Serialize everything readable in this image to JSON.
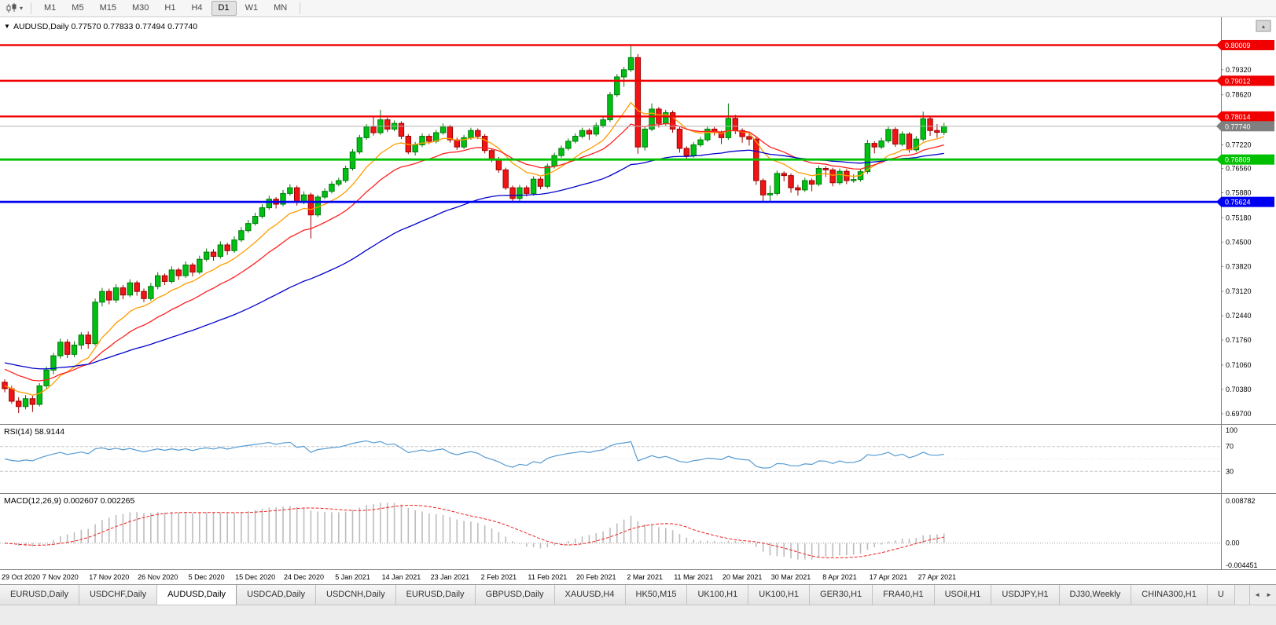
{
  "icons": {
    "dropdown_caret": "▾",
    "collapse_marker": "▼",
    "tab_scroll_left": "◄",
    "tab_scroll_right": "►"
  },
  "toolbar": {
    "timeframes": [
      "M1",
      "M5",
      "M15",
      "M30",
      "H1",
      "H4",
      "D1",
      "W1",
      "MN"
    ],
    "active_timeframe": "D1"
  },
  "chart": {
    "header_line": "AUDUSD,Daily 0.77570 0.77833 0.77494 0.77740",
    "symbol": "AUDUSD,Daily",
    "ohlc": {
      "open": "0.77570",
      "high": "0.77833",
      "low": "0.77494",
      "close": "0.77740"
    }
  },
  "indicators": {
    "rsi": {
      "name": "RSI(14)",
      "value": "58.9144",
      "label": "RSI(14) 58.9144",
      "axis_labels": [
        "100",
        "70",
        "30"
      ]
    },
    "macd": {
      "name": "MACD(12,26,9)",
      "values": [
        "0.002607",
        "0.002265"
      ],
      "label": "MACD(12,26,9) 0.002607 0.002265",
      "axis_labels": [
        "0.008782",
        "0.00",
        "-0.004451"
      ]
    }
  },
  "tabs": {
    "items": [
      "EURUSD,Daily",
      "USDCHF,Daily",
      "AUDUSD,Daily",
      "USDCAD,Daily",
      "USDCNH,Daily",
      "EURUSD,Daily",
      "GBPUSD,Daily",
      "XAUUSD,H4",
      "HK50,M15",
      "UK100,H1",
      "UK100,H1",
      "GER30,H1",
      "FRA40,H1",
      "USOil,H1",
      "USDJPY,H1",
      "DJ30,Weekly",
      "CHINA300,H1",
      "U"
    ],
    "active_index": 2
  },
  "chart_data": {
    "type": "candlestick",
    "symbol": "AUDUSD",
    "timeframe": "Daily",
    "scale_divisor": 100000,
    "price_scale": {
      "min": 0.695,
      "max": 0.807
    },
    "y_ticks": [
      "0.79320",
      "0.78620",
      "0.77920",
      "0.77220",
      "0.76560",
      "0.75880",
      "0.75180",
      "0.74500",
      "0.73820",
      "0.73120",
      "0.72440",
      "0.71760",
      "0.71060",
      "0.70380",
      "0.69700"
    ],
    "x_labels": [
      {
        "i": 1,
        "t": "29 Oct 2020"
      },
      {
        "i": 8,
        "t": "7 Nov 2020"
      },
      {
        "i": 15,
        "t": "17 Nov 2020"
      },
      {
        "i": 22,
        "t": "26 Nov 2020"
      },
      {
        "i": 29,
        "t": "5 Dec 2020"
      },
      {
        "i": 36,
        "t": "15 Dec 2020"
      },
      {
        "i": 43,
        "t": "24 Dec 2020"
      },
      {
        "i": 50,
        "t": "5 Jan 2021"
      },
      {
        "i": 57,
        "t": "14 Jan 2021"
      },
      {
        "i": 64,
        "t": "23 Jan 2021"
      },
      {
        "i": 71,
        "t": "2 Feb 2021"
      },
      {
        "i": 78,
        "t": "11 Feb 2021"
      },
      {
        "i": 85,
        "t": "20 Feb 2021"
      },
      {
        "i": 92,
        "t": "2 Mar 2021"
      },
      {
        "i": 99,
        "t": "11 Mar 2021"
      },
      {
        "i": 106,
        "t": "20 Mar 2021"
      },
      {
        "i": 113,
        "t": "30 Mar 2021"
      },
      {
        "i": 120,
        "t": "8 Apr 2021"
      },
      {
        "i": 127,
        "t": "17 Apr 2021"
      },
      {
        "i": 134,
        "t": "27 Apr 2021"
      }
    ],
    "hlines": [
      {
        "price": 0.80009,
        "label": "0.80009",
        "color": "#f00000"
      },
      {
        "price": 0.79012,
        "label": "0.79012",
        "color": "#f00000"
      },
      {
        "price": 0.78014,
        "label": "0.78014",
        "color": "#f00000"
      },
      {
        "price": 0.76809,
        "label": "0.76809",
        "color": "#00c000"
      },
      {
        "price": 0.75624,
        "label": "0.75624",
        "color": "#0000f0"
      }
    ],
    "current_price": {
      "value": 0.7774,
      "label": "0.77740",
      "color": "#808080"
    },
    "candle_colors": {
      "bull_fill": "#00c014",
      "bull_stroke": "#007a0a",
      "bear_fill": "#f01414",
      "bear_stroke": "#9c0000"
    },
    "overlays": [
      {
        "name": "ma-fast-orange",
        "period": 10,
        "seed": 70500,
        "color": "#ff9c00"
      },
      {
        "name": "ma-mid-red",
        "period": 20,
        "seed": 71000,
        "color": "#ff2020"
      },
      {
        "name": "ma-slow-blue",
        "period": 55,
        "seed": 71150,
        "color": "#0000cc"
      }
    ],
    "rsi": {
      "period": 14,
      "color": "#569bd2",
      "levels": [
        70,
        50,
        30
      ],
      "range": [
        0,
        100
      ]
    },
    "macd": {
      "fast": 12,
      "slow": 26,
      "signal": 9,
      "hist_color": "#bdbdbd",
      "signal_color": "#f02020"
    },
    "candles": [
      [
        70580,
        70660,
        70300,
        70400
      ],
      [
        70400,
        70480,
        69980,
        70050
      ],
      [
        70050,
        70160,
        69720,
        69900
      ],
      [
        69900,
        70220,
        69820,
        70120
      ],
      [
        70120,
        70200,
        69750,
        69960
      ],
      [
        69960,
        70560,
        69900,
        70480
      ],
      [
        70480,
        71020,
        70400,
        70920
      ],
      [
        70920,
        71400,
        70800,
        71320
      ],
      [
        71320,
        71800,
        71240,
        71700
      ],
      [
        71700,
        71780,
        71260,
        71360
      ],
      [
        71360,
        71720,
        71280,
        71620
      ],
      [
        71620,
        71980,
        71500,
        71900
      ],
      [
        71900,
        72000,
        71520,
        71660
      ],
      [
        71660,
        72920,
        71600,
        72820
      ],
      [
        72820,
        73220,
        72700,
        73120
      ],
      [
        73120,
        73200,
        72760,
        72880
      ],
      [
        72880,
        73320,
        72800,
        73220
      ],
      [
        73220,
        73300,
        72900,
        73020
      ],
      [
        73020,
        73460,
        72960,
        73360
      ],
      [
        73360,
        73420,
        73000,
        73120
      ],
      [
        73120,
        73200,
        72820,
        72920
      ],
      [
        72920,
        73360,
        72860,
        73260
      ],
      [
        73260,
        73660,
        73180,
        73560
      ],
      [
        73560,
        73620,
        73300,
        73400
      ],
      [
        73400,
        73820,
        73340,
        73720
      ],
      [
        73720,
        73780,
        73440,
        73560
      ],
      [
        73560,
        73960,
        73500,
        73860
      ],
      [
        73860,
        73920,
        73540,
        73660
      ],
      [
        73660,
        74120,
        73600,
        74020
      ],
      [
        74020,
        74320,
        73960,
        74220
      ],
      [
        74220,
        74300,
        73980,
        74100
      ],
      [
        74100,
        74520,
        74040,
        74420
      ],
      [
        74420,
        74480,
        74140,
        74260
      ],
      [
        74260,
        74660,
        74200,
        74560
      ],
      [
        74560,
        74920,
        74500,
        74820
      ],
      [
        74820,
        75120,
        74760,
        75020
      ],
      [
        75020,
        75320,
        74960,
        75220
      ],
      [
        75220,
        75560,
        75160,
        75460
      ],
      [
        75460,
        75800,
        75400,
        75700
      ],
      [
        75700,
        75760,
        75440,
        75560
      ],
      [
        75560,
        75960,
        75500,
        75860
      ],
      [
        75860,
        76120,
        75800,
        76020
      ],
      [
        76020,
        76080,
        75520,
        75620
      ],
      [
        75620,
        75920,
        75560,
        75820
      ],
      [
        75820,
        75880,
        74600,
        75260
      ],
      [
        75260,
        75820,
        75200,
        75760
      ],
      [
        75760,
        76000,
        75700,
        75920
      ],
      [
        75920,
        76200,
        75860,
        76120
      ],
      [
        76120,
        76300,
        76060,
        76220
      ],
      [
        76220,
        76640,
        76160,
        76560
      ],
      [
        76560,
        77100,
        76500,
        77020
      ],
      [
        77020,
        77500,
        76960,
        77420
      ],
      [
        77420,
        77800,
        77360,
        77720
      ],
      [
        77720,
        78000,
        77480,
        77560
      ],
      [
        77560,
        78200,
        77500,
        77920
      ],
      [
        77920,
        77980,
        77580,
        77660
      ],
      [
        77660,
        77900,
        77600,
        77820
      ],
      [
        77820,
        77880,
        77380,
        77460
      ],
      [
        77460,
        77520,
        76960,
        77020
      ],
      [
        77020,
        77300,
        76920,
        77220
      ],
      [
        77220,
        77540,
        77160,
        77460
      ],
      [
        77460,
        77520,
        77240,
        77320
      ],
      [
        77320,
        77640,
        77260,
        77560
      ],
      [
        77560,
        77820,
        77500,
        77720
      ],
      [
        77720,
        77780,
        77280,
        77360
      ],
      [
        77360,
        77420,
        77080,
        77160
      ],
      [
        77160,
        77500,
        77100,
        77420
      ],
      [
        77420,
        77700,
        77360,
        77620
      ],
      [
        77620,
        77680,
        77380,
        77460
      ],
      [
        77460,
        77520,
        76980,
        77060
      ],
      [
        77060,
        77120,
        76740,
        76820
      ],
      [
        76820,
        76880,
        76440,
        76520
      ],
      [
        76520,
        76580,
        75960,
        76020
      ],
      [
        76020,
        76080,
        75600,
        75720
      ],
      [
        75720,
        76100,
        75640,
        76020
      ],
      [
        76020,
        76080,
        75780,
        75860
      ],
      [
        75860,
        76340,
        75800,
        76260
      ],
      [
        76260,
        76320,
        75980,
        76060
      ],
      [
        76060,
        76700,
        76000,
        76620
      ],
      [
        76620,
        77000,
        76560,
        76920
      ],
      [
        76920,
        77200,
        76860,
        77120
      ],
      [
        77120,
        77400,
        77060,
        77320
      ],
      [
        77320,
        77540,
        77260,
        77460
      ],
      [
        77460,
        77700,
        77400,
        77620
      ],
      [
        77620,
        77680,
        77360,
        77520
      ],
      [
        77520,
        77840,
        77460,
        77760
      ],
      [
        77760,
        78000,
        77700,
        77920
      ],
      [
        77920,
        78700,
        77860,
        78620
      ],
      [
        78620,
        79200,
        78560,
        79120
      ],
      [
        79120,
        79400,
        78840,
        79320
      ],
      [
        79320,
        80010,
        79260,
        79660
      ],
      [
        79660,
        79760,
        76970,
        77160
      ],
      [
        77160,
        77740,
        77060,
        77660
      ],
      [
        77660,
        78380,
        77600,
        78220
      ],
      [
        78220,
        78280,
        77700,
        77820
      ],
      [
        77820,
        78200,
        77760,
        78120
      ],
      [
        78120,
        78180,
        77560,
        77660
      ],
      [
        77660,
        77720,
        77000,
        77120
      ],
      [
        77120,
        77180,
        76800,
        76920
      ],
      [
        76920,
        77300,
        76860,
        77220
      ],
      [
        77220,
        77440,
        77160,
        77360
      ],
      [
        77360,
        77740,
        77300,
        77660
      ],
      [
        77660,
        77720,
        77480,
        77560
      ],
      [
        77560,
        77620,
        77240,
        77420
      ],
      [
        77420,
        78380,
        77360,
        77960
      ],
      [
        77960,
        78060,
        77520,
        77620
      ],
      [
        77620,
        77680,
        77280,
        77450
      ],
      [
        77450,
        77520,
        77200,
        77380
      ],
      [
        77380,
        77440,
        76100,
        76220
      ],
      [
        76220,
        76280,
        75640,
        75820
      ],
      [
        75820,
        76080,
        75620,
        75860
      ],
      [
        75860,
        76500,
        75800,
        76420
      ],
      [
        76420,
        76480,
        76200,
        76360
      ],
      [
        76360,
        76420,
        75880,
        76020
      ],
      [
        76020,
        76100,
        75800,
        75960
      ],
      [
        75960,
        76300,
        75900,
        76220
      ],
      [
        76220,
        76280,
        75920,
        76120
      ],
      [
        76120,
        76640,
        76060,
        76560
      ],
      [
        76560,
        76620,
        76320,
        76520
      ],
      [
        76520,
        76580,
        76060,
        76160
      ],
      [
        76160,
        76560,
        76100,
        76480
      ],
      [
        76480,
        76540,
        76120,
        76220
      ],
      [
        76220,
        76400,
        76160,
        76250
      ],
      [
        76250,
        76550,
        76190,
        76470
      ],
      [
        76470,
        77360,
        76410,
        77260
      ],
      [
        77260,
        77320,
        76980,
        77160
      ],
      [
        77160,
        77420,
        77100,
        77330
      ],
      [
        77330,
        77730,
        77270,
        77650
      ],
      [
        77650,
        77710,
        77160,
        77240
      ],
      [
        77240,
        77600,
        77180,
        77520
      ],
      [
        77520,
        77580,
        77000,
        77080
      ],
      [
        77080,
        77460,
        77020,
        77380
      ],
      [
        77380,
        78150,
        77320,
        77950
      ],
      [
        77950,
        78010,
        77470,
        77620
      ],
      [
        77620,
        77800,
        77420,
        77570
      ],
      [
        77570,
        77833,
        77494,
        77740
      ]
    ]
  }
}
